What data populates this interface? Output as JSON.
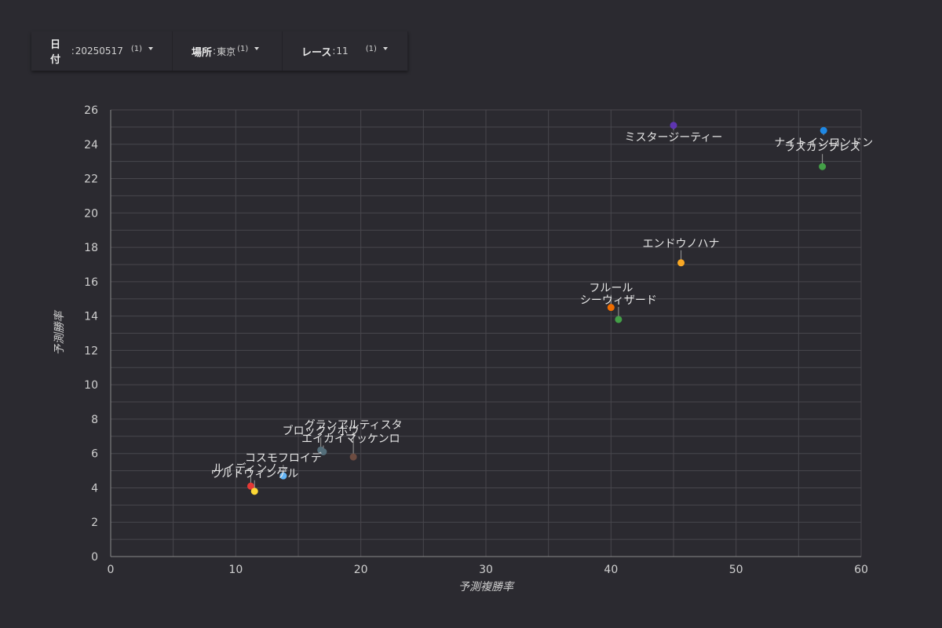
{
  "filters": [
    {
      "label": "日付",
      "value": "20250517",
      "count": "(1)"
    },
    {
      "label": "場所",
      "value": "東京",
      "count": "(1)"
    },
    {
      "label": "レース",
      "value": "11",
      "count": "(1)"
    }
  ],
  "chart_data": {
    "type": "scatter",
    "xlabel": "予測複勝率",
    "ylabel": "予測勝率",
    "xlim": [
      0,
      60
    ],
    "ylim": [
      0,
      26
    ],
    "xticks": [
      0,
      10,
      20,
      30,
      40,
      50,
      60
    ],
    "yticks": [
      0,
      2,
      4,
      6,
      8,
      10,
      12,
      14,
      16,
      18,
      20,
      22,
      24,
      26
    ],
    "grid": true,
    "points": [
      {
        "name": "ミスタージーティー",
        "x": 45.0,
        "y": 25.1,
        "color": "#5e35b1",
        "label_dx": 0,
        "label_dy": 20
      },
      {
        "name": "ナイトインロンドン",
        "x": 57.0,
        "y": 24.8,
        "color": "#1e88e5",
        "label_dx": 0,
        "label_dy": 20
      },
      {
        "name": "ラスカンブレス",
        "x": 56.9,
        "y": 22.7,
        "color": "#43a047",
        "label_dx": 0,
        "label_dy": -20
      },
      {
        "name": "エンドウノハナ",
        "x": 45.6,
        "y": 17.1,
        "color": "#f9a825",
        "label_dx": 0,
        "label_dy": -20
      },
      {
        "name": "フルール",
        "x": 40.0,
        "y": 14.5,
        "color": "#ef6c00",
        "label_dx": 0,
        "label_dy": -20
      },
      {
        "name": "シーウィザード",
        "x": 40.6,
        "y": 13.8,
        "color": "#43a047",
        "label_dx": 0,
        "label_dy": -20
      },
      {
        "name": "グランアルティスタ",
        "x": 19.4,
        "y": 5.8,
        "color": "#6d4c41",
        "label_dx": 0,
        "label_dy": -36
      },
      {
        "name": "ブロックソボウ",
        "x": 16.8,
        "y": 6.2,
        "color": "#546e7a",
        "label_dx": 0,
        "label_dy": -20
      },
      {
        "name": "エイカイマッケンロ",
        "x": 17.0,
        "y": 6.1,
        "color": "#546e7a",
        "label_dx": 35,
        "label_dy": -12
      },
      {
        "name": "コスモフロイデ",
        "x": 13.8,
        "y": 4.7,
        "color": "#64b5f6",
        "label_dx": 0,
        "label_dy": -18
      },
      {
        "name": "ルイディンノー",
        "x": 11.2,
        "y": 4.1,
        "color": "#e53935",
        "label_dx": 0,
        "label_dy": -18
      },
      {
        "name": "ウルトウィンゲル",
        "x": 11.5,
        "y": 3.8,
        "color": "#fdd835",
        "label_dx": 0,
        "label_dy": -18
      }
    ]
  }
}
